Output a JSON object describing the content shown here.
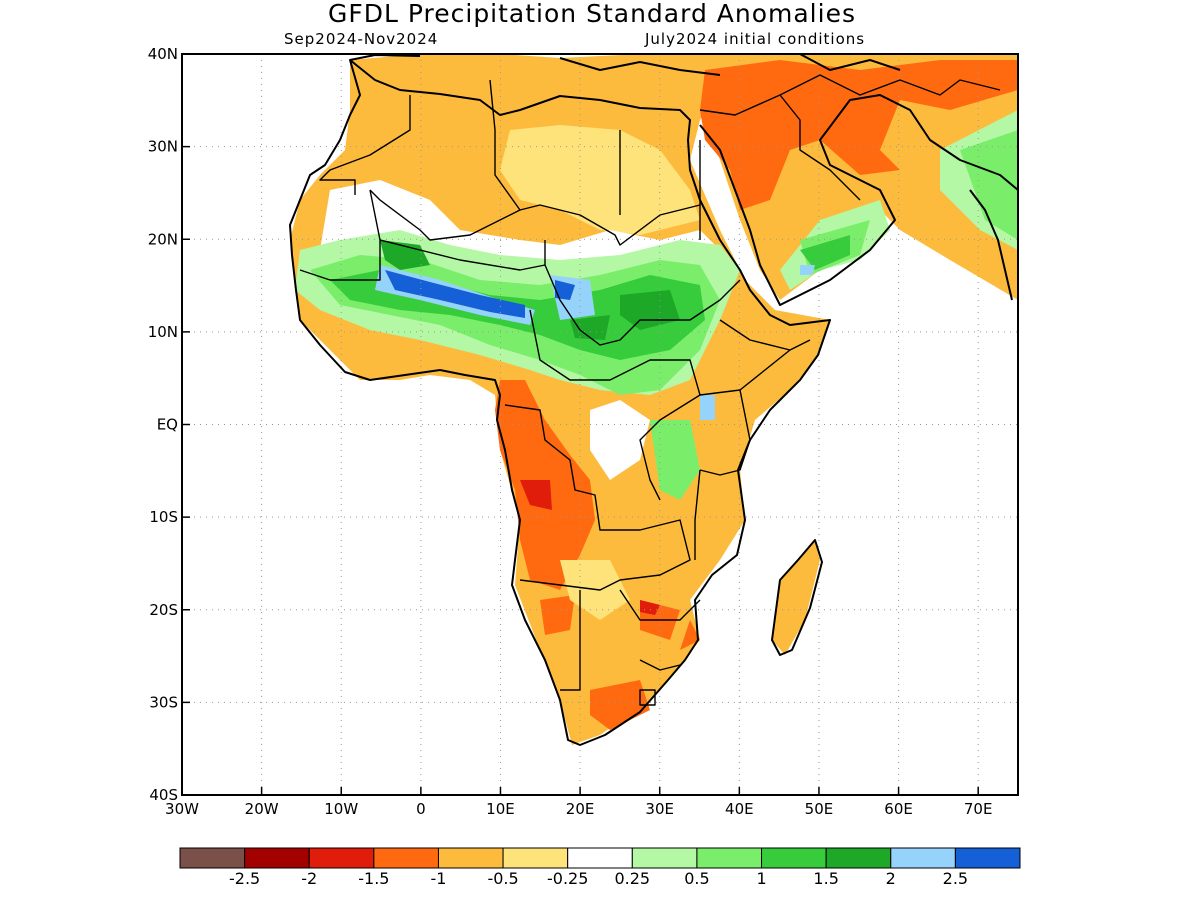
{
  "title": "GFDL Precipitation Standard Anomalies",
  "subtitle_left": "Sep2024-Nov2024",
  "subtitle_right": "July2024 initial conditions",
  "chart_data": {
    "type": "heatmap",
    "title": "GFDL Precipitation Standard Anomalies",
    "period": "Sep2024-Nov2024",
    "initial_conditions": "July2024 initial conditions",
    "x_axis": {
      "range_degrees": [
        -30,
        75
      ],
      "tick_values": [
        -30,
        -20,
        -10,
        0,
        10,
        20,
        30,
        40,
        50,
        60,
        70
      ],
      "tick_labels": [
        "30W",
        "20W",
        "10W",
        "0",
        "10E",
        "20E",
        "30E",
        "40E",
        "50E",
        "60E",
        "70E"
      ]
    },
    "y_axis": {
      "range_degrees": [
        -40,
        40
      ],
      "tick_values": [
        40,
        30,
        20,
        10,
        0,
        -10,
        -20,
        -30,
        -40
      ],
      "tick_labels": [
        "40N",
        "30N",
        "20N",
        "10N",
        "EQ",
        "10S",
        "20S",
        "30S",
        "40S"
      ]
    },
    "grid": true,
    "legend": {
      "placement": "bottom",
      "colors": [
        "#7a5048",
        "#a30000",
        "#e01c0a",
        "#ff6a10",
        "#fdbb3d",
        "#fee27a",
        "#ffffff",
        "#b4f8a5",
        "#7aee6b",
        "#37cc3b",
        "#1ea828",
        "#96d3fa",
        "#1560d6"
      ],
      "labels": [
        "-2.5",
        "-2",
        "-1.5",
        "-1",
        "-0.5",
        "-0.25",
        "0.25",
        "0.5",
        "1",
        "1.5",
        "2",
        "2.5"
      ]
    }
  }
}
